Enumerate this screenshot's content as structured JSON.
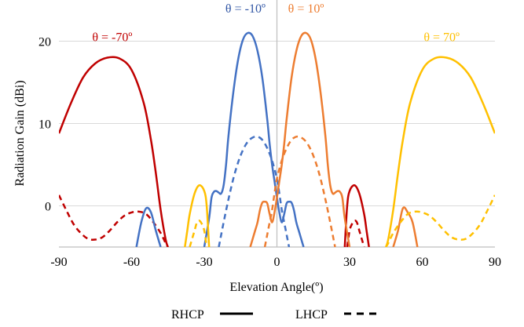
{
  "chart_data": {
    "type": "line",
    "xlabel": "Elevation  Angle(º)",
    "ylabel": "Radiation  Gain  (dBi)",
    "xlim": [
      -90,
      90
    ],
    "ylim": [
      -5,
      25
    ],
    "xticks": [
      -90,
      -60,
      -30,
      0,
      30,
      60,
      90
    ],
    "yticks": [
      0,
      10,
      20
    ],
    "grid": "horizontal",
    "legend_position": "bottom",
    "legend": [
      {
        "label": "RHCP",
        "style": "solid"
      },
      {
        "label": "LHCP",
        "style": "dashed"
      }
    ],
    "series": [
      {
        "color": "#c00000",
        "style": "solid",
        "x": [
          -90,
          -85,
          -80,
          -75,
          -70,
          -65,
          -60,
          -55,
          -52,
          -50,
          -48,
          -46,
          -45
        ],
        "y": [
          8.8,
          12.5,
          15.6,
          17.3,
          18.0,
          17.9,
          16.5,
          12.5,
          8.0,
          4.0,
          -0.5,
          -4.0,
          -5.0
        ]
      },
      {
        "color": "#c00000",
        "style": "dashed",
        "x": [
          -90,
          -87,
          -84,
          -81,
          -78,
          -75,
          -72,
          -69,
          -66,
          -63,
          -60,
          -57,
          -54,
          -51,
          -48,
          -46,
          -45
        ],
        "y": [
          1.3,
          -0.5,
          -2.2,
          -3.3,
          -4.0,
          -4.1,
          -3.8,
          -3.0,
          -2.0,
          -1.2,
          -0.8,
          -0.7,
          -1.0,
          -2.0,
          -3.3,
          -4.5,
          -5.0
        ]
      },
      {
        "color": "#c00000",
        "style": "solid",
        "x": [
          28,
          29,
          30,
          32,
          34,
          36,
          37,
          38
        ],
        "y": [
          -5.0,
          0.0,
          1.8,
          2.5,
          1.5,
          -1.0,
          -3.0,
          -5.0
        ]
      },
      {
        "color": "#c00000",
        "style": "dashed",
        "x": [
          29,
          30,
          31,
          32,
          33,
          34,
          35,
          36
        ],
        "y": [
          -5.0,
          -3.0,
          -2.2,
          -1.8,
          -2.0,
          -3.0,
          -4.0,
          -5.0
        ]
      },
      {
        "color": "#4472c4",
        "style": "solid",
        "x": [
          -58,
          -56,
          -54,
          -52,
          -50,
          -48
        ],
        "y": [
          -5.0,
          -2.0,
          -0.3,
          -0.8,
          -3.0,
          -5.0
        ]
      },
      {
        "color": "#4472c4",
        "style": "solid",
        "x": [
          -30,
          -28,
          -27,
          -26,
          -25,
          -24,
          -23,
          -22,
          -21,
          -20,
          -18,
          -16,
          -14,
          -12,
          -10,
          -8,
          -6,
          -4,
          -3,
          -2,
          -1,
          0,
          1,
          2,
          3,
          4,
          5,
          6,
          7,
          8,
          9,
          10,
          11
        ],
        "y": [
          -5.0,
          -1.5,
          1.0,
          1.7,
          1.8,
          1.6,
          1.5,
          2.5,
          5.0,
          8.5,
          13.8,
          17.8,
          20.2,
          21.0,
          20.6,
          18.8,
          15.5,
          10.5,
          7.5,
          5.0,
          3.0,
          1.0,
          -0.8,
          -2.0,
          -1.0,
          0.3,
          0.5,
          0.4,
          -0.5,
          -2.0,
          -3.0,
          -4.0,
          -5.0
        ]
      },
      {
        "color": "#4472c4",
        "style": "dashed",
        "x": [
          -24,
          -22,
          -20,
          -18,
          -16,
          -14,
          -12,
          -10,
          -8,
          -6,
          -4,
          -2,
          0,
          1,
          2,
          3,
          4,
          5
        ],
        "y": [
          -5.0,
          -2.0,
          0.8,
          3.3,
          5.3,
          6.8,
          7.8,
          8.3,
          8.4,
          8.0,
          7.0,
          5.5,
          3.3,
          1.5,
          -0.5,
          -2.0,
          -3.5,
          -5.0
        ]
      },
      {
        "color": "#ed7d31",
        "style": "solid",
        "x": [
          -11,
          -10,
          -9,
          -8,
          -7,
          -6,
          -5,
          -4,
          -3,
          -2,
          -1,
          0,
          1,
          2,
          3,
          4,
          6,
          8,
          10,
          12,
          14,
          16,
          18,
          20,
          21,
          22,
          23,
          24,
          25,
          26,
          27,
          28,
          30
        ],
        "y": [
          -5.0,
          -4.0,
          -3.0,
          -2.0,
          -0.5,
          0.4,
          0.5,
          0.3,
          -1.0,
          -2.0,
          -0.8,
          1.0,
          3.0,
          5.0,
          7.5,
          10.5,
          15.5,
          18.8,
          20.6,
          21.0,
          20.2,
          17.8,
          13.8,
          8.5,
          5.0,
          2.5,
          1.5,
          1.6,
          1.8,
          1.7,
          1.0,
          -1.5,
          -5.0
        ]
      },
      {
        "color": "#ed7d31",
        "style": "dashed",
        "x": [
          -5,
          -4,
          -3,
          -2,
          -1,
          0,
          2,
          4,
          6,
          8,
          10,
          12,
          14,
          16,
          18,
          20,
          22,
          24
        ],
        "y": [
          -5.0,
          -3.5,
          -2.0,
          -0.5,
          1.5,
          3.3,
          5.5,
          7.0,
          8.0,
          8.4,
          8.3,
          7.8,
          6.8,
          5.3,
          3.3,
          0.8,
          -2.0,
          -5.0
        ]
      },
      {
        "color": "#ed7d31",
        "style": "solid",
        "x": [
          48,
          50,
          52,
          54,
          56,
          58
        ],
        "y": [
          -5.0,
          -3.0,
          -0.3,
          -0.8,
          -2.0,
          -5.0
        ]
      },
      {
        "color": "#ffc000",
        "style": "solid",
        "x": [
          -38,
          -37,
          -36,
          -34,
          -32,
          -30,
          -29,
          -28
        ],
        "y": [
          -5.0,
          -3.0,
          -1.0,
          1.5,
          2.5,
          1.8,
          0.0,
          -5.0
        ]
      },
      {
        "color": "#ffc000",
        "style": "dashed",
        "x": [
          -36,
          -35,
          -34,
          -33,
          -32,
          -31,
          -30,
          -29
        ],
        "y": [
          -5.0,
          -4.0,
          -3.0,
          -2.0,
          -1.8,
          -2.2,
          -3.0,
          -5.0
        ]
      },
      {
        "color": "#ffc000",
        "style": "solid",
        "x": [
          45,
          46,
          48,
          50,
          52,
          55,
          60,
          65,
          70,
          75,
          80,
          85,
          90
        ],
        "y": [
          -5.0,
          -4.0,
          -0.5,
          4.0,
          8.0,
          12.5,
          16.5,
          17.9,
          18.0,
          17.3,
          15.6,
          12.5,
          8.8
        ]
      },
      {
        "color": "#ffc000",
        "style": "dashed",
        "x": [
          45,
          46,
          48,
          51,
          54,
          57,
          60,
          63,
          66,
          69,
          72,
          75,
          78,
          81,
          84,
          87,
          90
        ],
        "y": [
          -5.0,
          -4.5,
          -3.3,
          -2.0,
          -1.0,
          -0.7,
          -0.8,
          -1.2,
          -2.0,
          -3.0,
          -3.8,
          -4.1,
          -4.0,
          -3.3,
          -2.2,
          -0.5,
          1.3
        ]
      }
    ],
    "annotations": [
      {
        "text": "θ = -70º",
        "color": "#c00000",
        "x": -68,
        "y": 20
      },
      {
        "text": "θ = -10º",
        "color": "#2f55a4",
        "x": -13,
        "y": 23.5
      },
      {
        "text": "θ = 10º",
        "color": "#ed7d31",
        "x": 12,
        "y": 23.5
      },
      {
        "text": "θ = 70º",
        "color": "#ffc000",
        "x": 68,
        "y": 20
      }
    ]
  }
}
